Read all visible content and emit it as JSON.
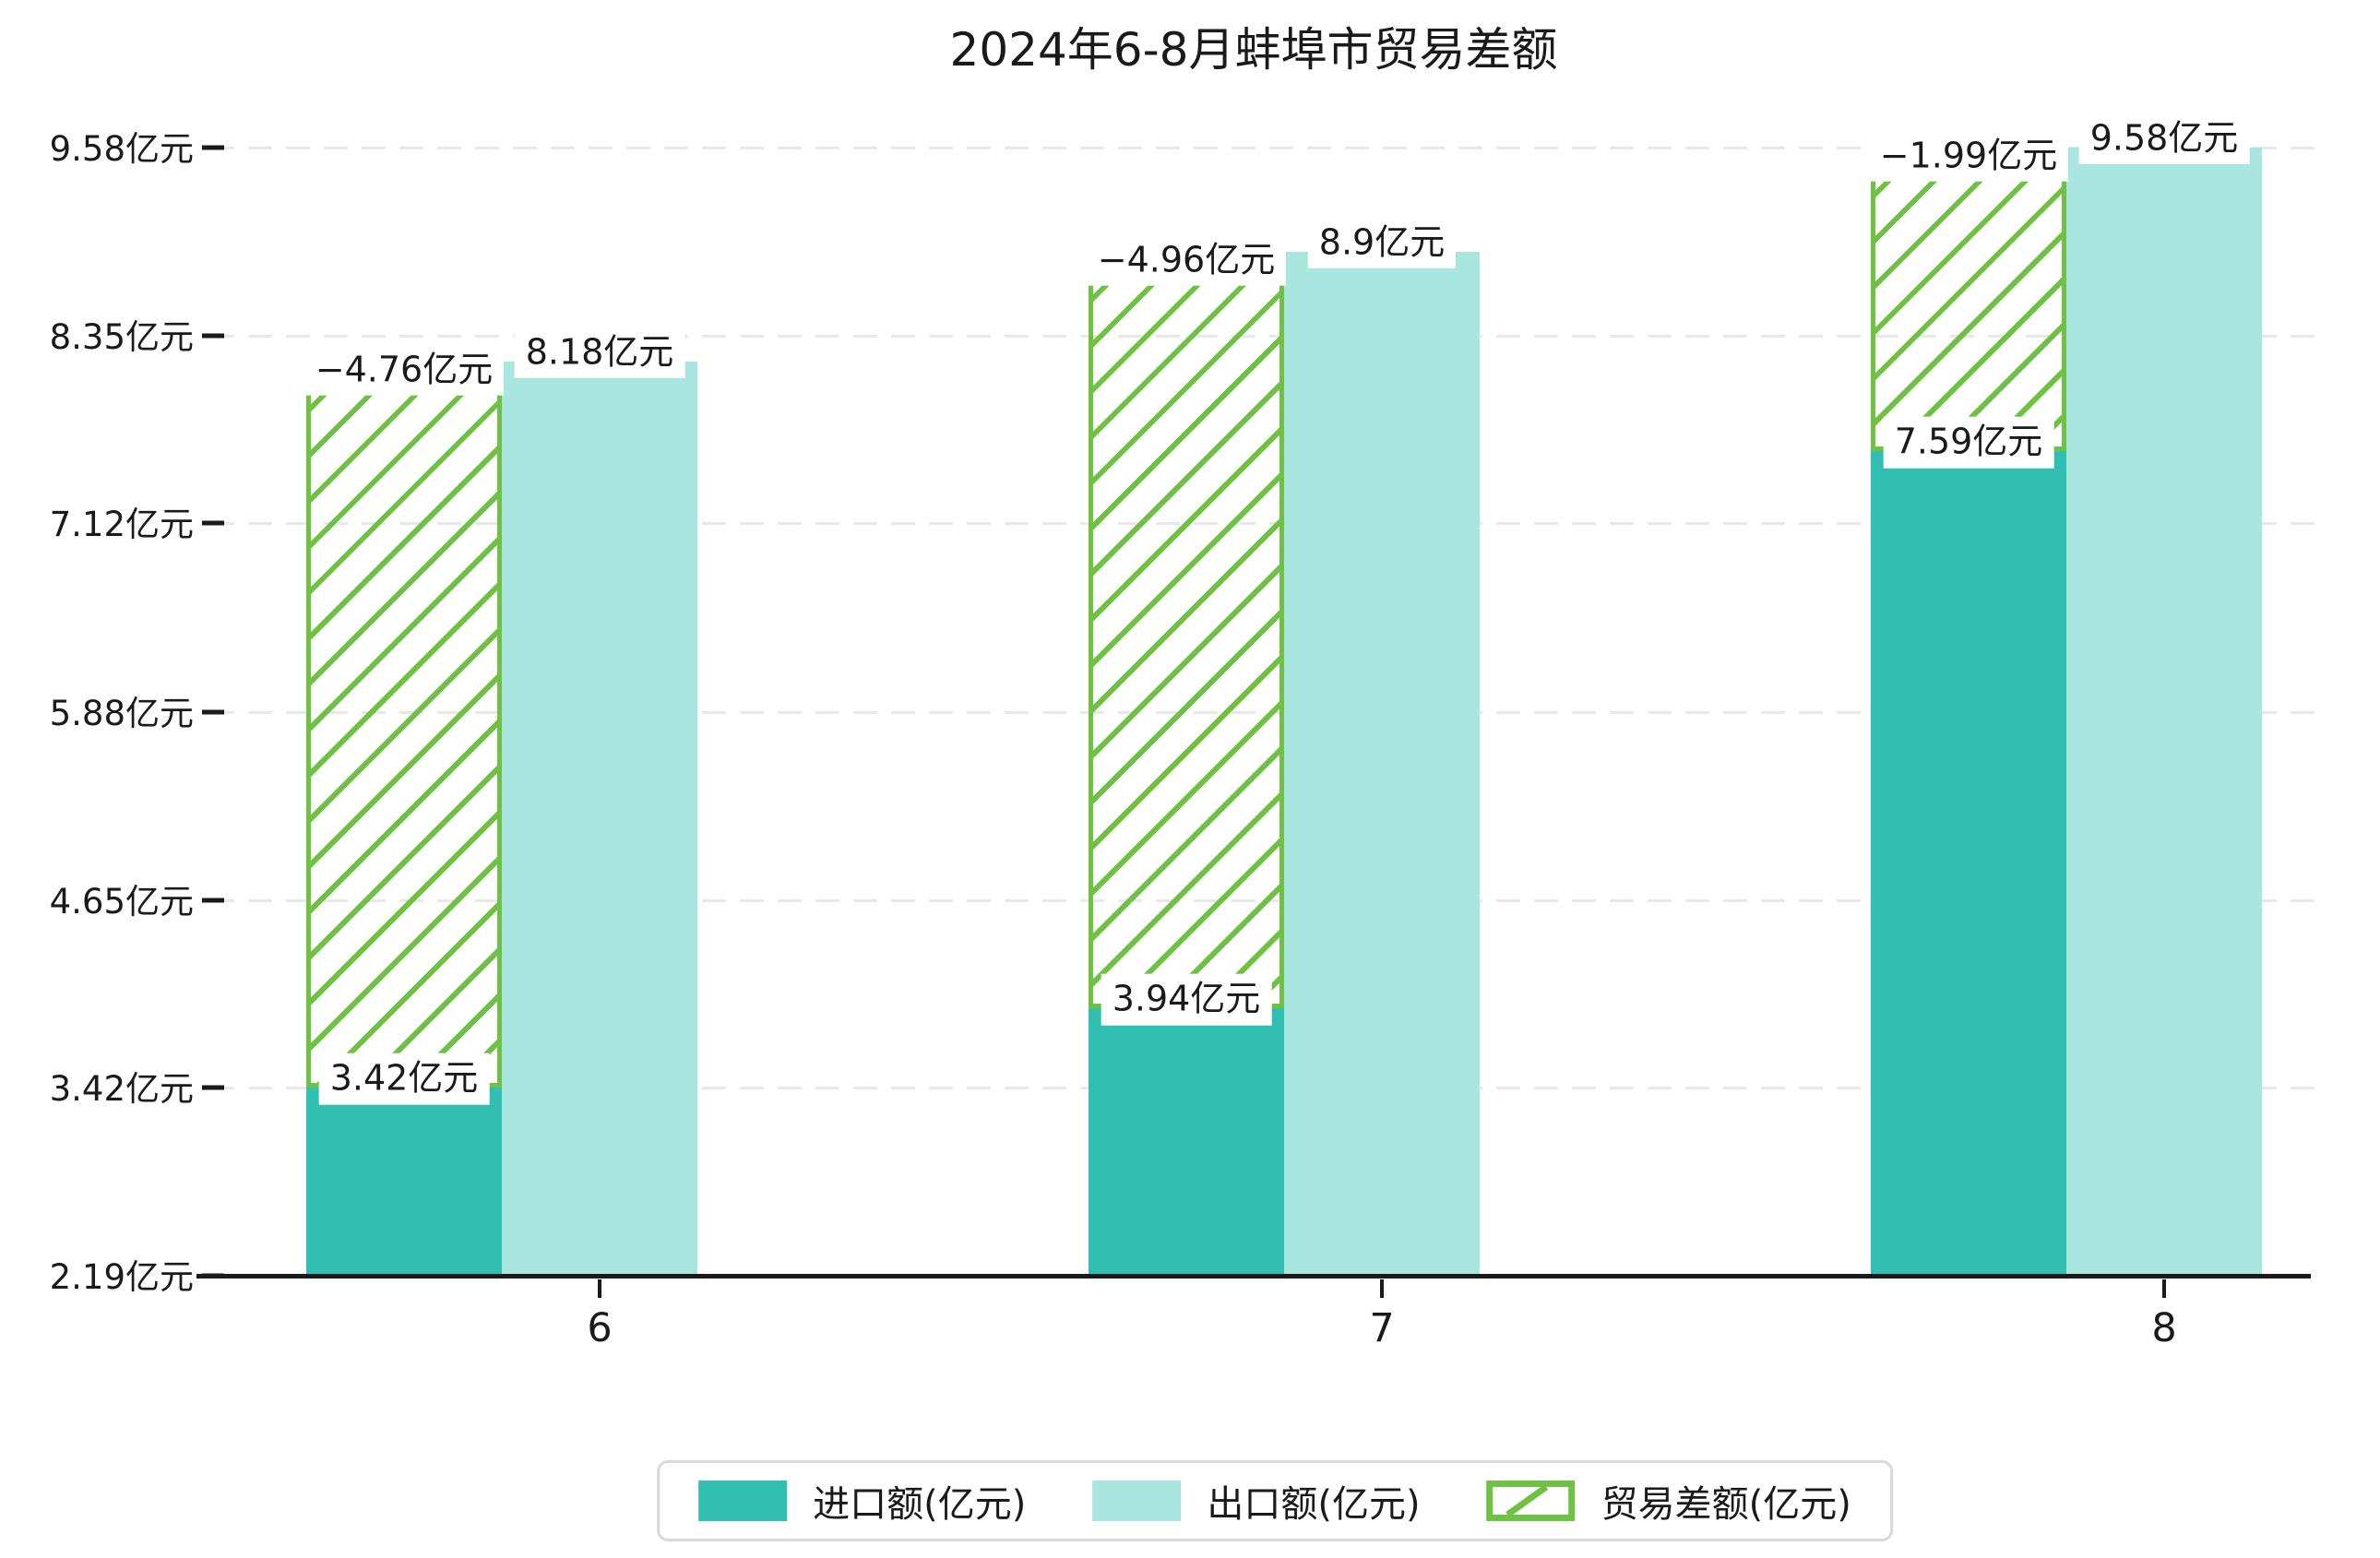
{
  "title": "2024年6-8月蚌埠市贸易差额",
  "colors": {
    "import_bar": "#30bfb1",
    "export_bar": "#a8e6df",
    "balance_hatch": "#6fc143",
    "gridline": "#e8e8e8",
    "axis": "#1a1a1a",
    "label_text": "#1a1a1a",
    "legend_border": "#d9d9d9"
  },
  "chart_data": {
    "type": "bar",
    "title": "2024年6-8月蚌埠市贸易差额",
    "categories": [
      "6",
      "7",
      "8"
    ],
    "series": [
      {
        "name": "进口额(亿元)",
        "role": "import",
        "values": [
          3.42,
          3.94,
          7.59
        ],
        "labels": [
          "3.42亿元",
          "3.94亿元",
          "7.59亿元"
        ],
        "color": "#30bfb1",
        "style": "solid"
      },
      {
        "name": "出口额(亿元)",
        "role": "export",
        "values": [
          8.18,
          8.9,
          9.58
        ],
        "labels": [
          "8.18亿元",
          "8.9亿元",
          "9.58亿元"
        ],
        "color": "#a8e6df",
        "style": "solid"
      },
      {
        "name": "贸易差额(亿元)",
        "role": "balance",
        "values": [
          -4.76,
          -4.96,
          -1.99
        ],
        "labels": [
          "−4.76亿元",
          "−4.96亿元",
          "−1.99亿元"
        ],
        "color": "#6fc143",
        "style": "hatched",
        "stacked_on": "import"
      }
    ],
    "y_axis": {
      "min": 2.19,
      "max": 9.58,
      "ticks": [
        {
          "value": 2.19,
          "label": "2.19亿元"
        },
        {
          "value": 3.42,
          "label": "3.42亿元"
        },
        {
          "value": 4.65,
          "label": "4.65亿元"
        },
        {
          "value": 5.88,
          "label": "5.88亿元"
        },
        {
          "value": 7.12,
          "label": "7.12亿元"
        },
        {
          "value": 8.35,
          "label": "8.35亿元"
        },
        {
          "value": 9.58,
          "label": "9.58亿元"
        }
      ]
    },
    "x_axis": {
      "tick_labels": [
        "6",
        "7",
        "8"
      ]
    },
    "grid": "horizontal-dashed",
    "legend_position": "bottom-center"
  },
  "legend": {
    "items": [
      {
        "label": "进口额(亿元)",
        "swatch": "import-solid"
      },
      {
        "label": "出口额(亿元)",
        "swatch": "export-solid"
      },
      {
        "label": "贸易差额(亿元)",
        "swatch": "balance-hatched"
      }
    ]
  }
}
